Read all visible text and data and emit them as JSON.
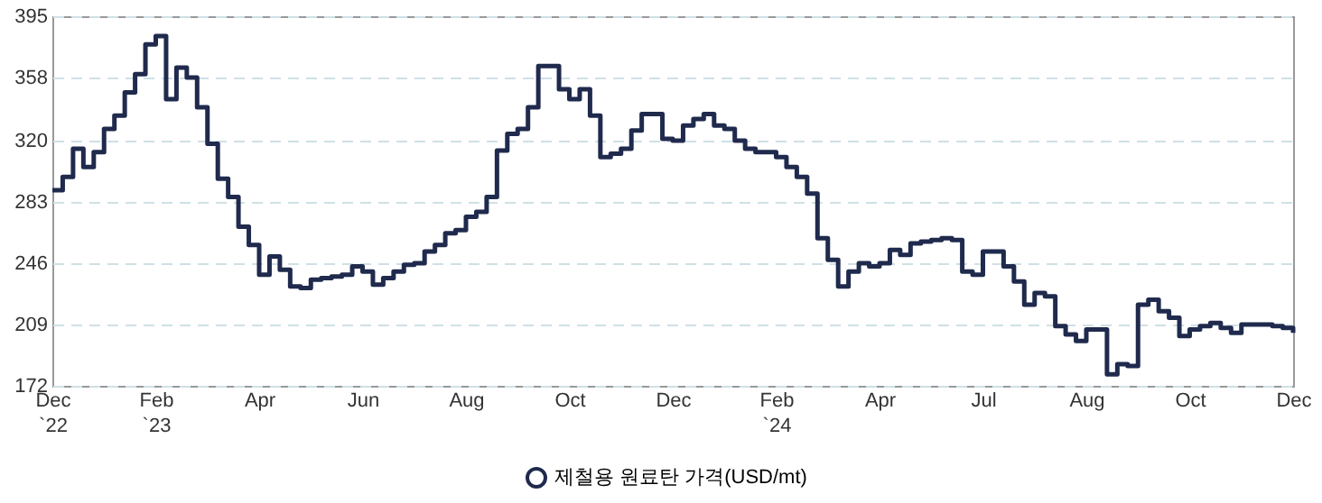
{
  "chart_data": {
    "type": "step",
    "categories": [
      "Dec\n`22",
      null,
      null,
      null,
      null,
      null,
      null,
      null,
      null,
      null,
      "Feb\n`23",
      null,
      null,
      null,
      null,
      null,
      null,
      null,
      null,
      null,
      "Apr",
      null,
      null,
      null,
      null,
      null,
      null,
      null,
      null,
      null,
      "Jun",
      null,
      null,
      null,
      null,
      null,
      null,
      null,
      null,
      null,
      "Aug",
      null,
      null,
      null,
      null,
      null,
      null,
      null,
      null,
      null,
      "Oct",
      null,
      null,
      null,
      null,
      null,
      null,
      null,
      null,
      null,
      "Dec",
      null,
      null,
      null,
      null,
      null,
      null,
      null,
      null,
      null,
      "Feb\n`24",
      null,
      null,
      null,
      null,
      null,
      null,
      null,
      null,
      null,
      "Apr",
      null,
      null,
      null,
      null,
      null,
      null,
      null,
      null,
      null,
      "Jul",
      null,
      null,
      null,
      null,
      null,
      null,
      null,
      null,
      null,
      "Aug",
      null,
      null,
      null,
      null,
      null,
      null,
      null,
      null,
      null,
      "Oct",
      null,
      null,
      null,
      null,
      null,
      null,
      null,
      null,
      null,
      "Dec"
    ],
    "series": [
      {
        "name": "제철용 원료탄 가격(USD/mt)",
        "color": "#1f2a4d",
        "values": [
          290,
          298,
          315,
          304,
          313,
          327,
          335,
          349,
          360,
          378,
          383,
          345,
          364,
          358,
          340,
          318,
          297,
          286,
          268,
          257,
          239,
          250,
          242,
          232,
          231,
          236,
          237,
          238,
          239,
          244,
          241,
          233,
          237,
          241,
          245,
          246,
          253,
          257,
          264,
          266,
          274,
          277,
          286,
          314,
          324,
          327,
          340,
          365,
          365,
          351,
          345,
          351,
          335,
          310,
          312,
          315,
          326,
          336,
          336,
          321,
          320,
          329,
          333,
          336,
          329,
          327,
          320,
          315,
          313,
          313,
          310,
          304,
          298,
          288,
          261,
          248,
          232,
          241,
          246,
          244,
          246,
          254,
          251,
          258,
          259,
          260,
          261,
          260,
          241,
          239,
          253,
          253,
          244,
          235,
          221,
          228,
          226,
          208,
          203,
          199,
          206,
          206,
          179,
          185,
          184,
          221,
          224,
          217,
          213,
          202,
          206,
          208,
          210,
          207,
          204,
          209,
          209,
          209,
          208,
          207,
          204
        ]
      }
    ],
    "ylim": [
      172,
      395
    ],
    "yticks": [
      172,
      209,
      246,
      283,
      320,
      358,
      395
    ],
    "grid": "y",
    "legend": "bottom",
    "marker": "none",
    "line_style": "solid"
  }
}
